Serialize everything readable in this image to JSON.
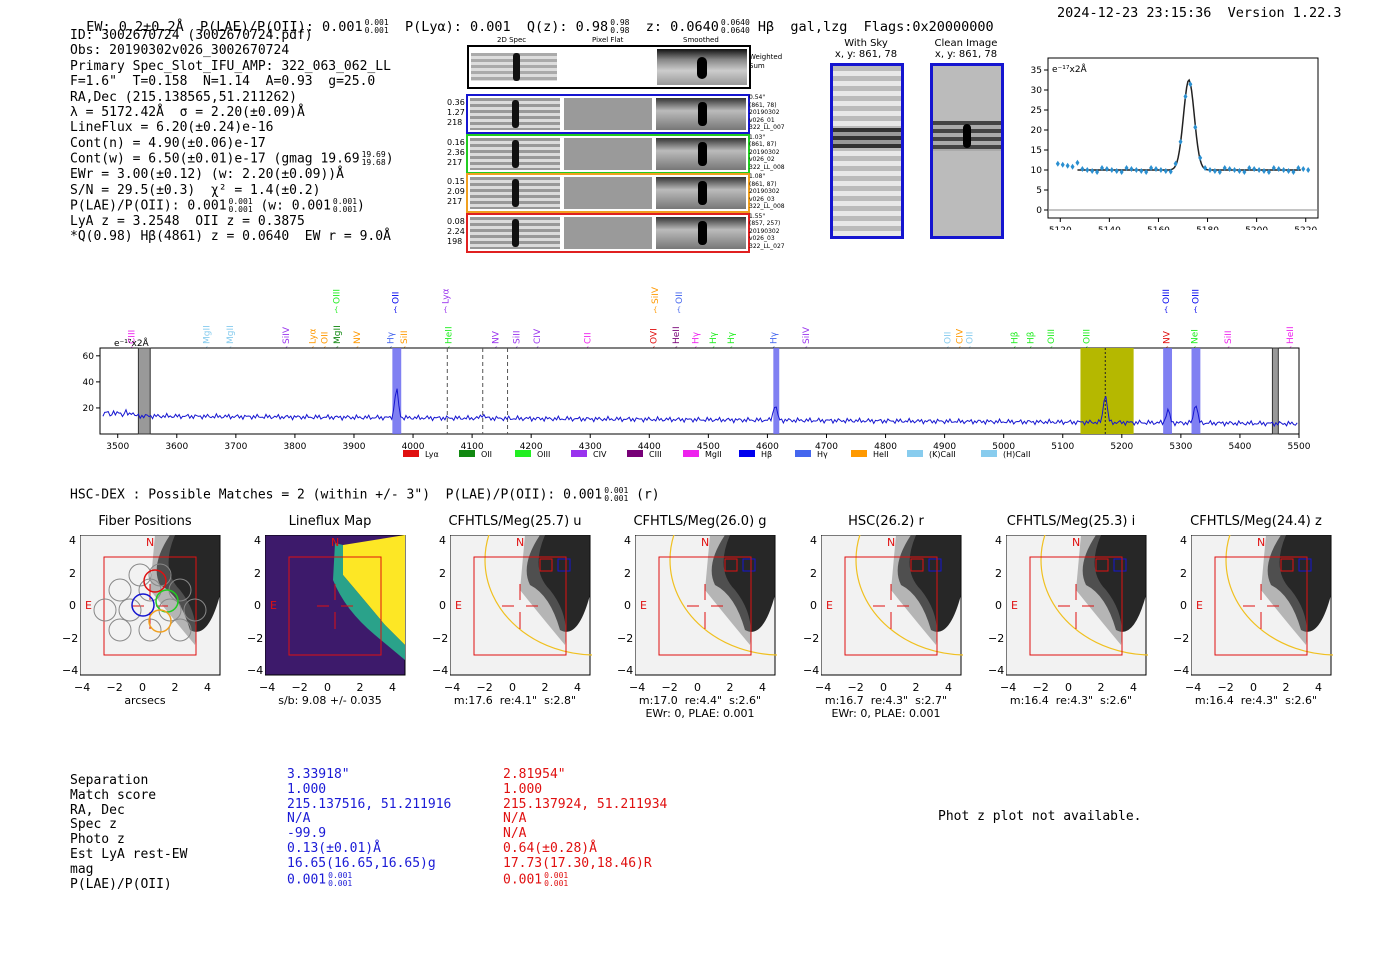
{
  "header": {
    "left": "EW: 0.2±0.2Å  P(LAE)/P(OII): 0.001",
    "plae_hi": "0.001",
    "plae_lo": "0.001",
    "plya": "P(Lyα): 0.001",
    "qz": "Q(z): 0.98",
    "qz_hi": "0.98",
    "qz_lo": "0.98",
    "z": "z: 0.0640",
    "z_hi": "0.0640",
    "z_lo": "0.0640",
    "hb": "Hβ  gal,lzg  Flags:0x20000000",
    "right": "2024-12-23 23:15:36  Version 1.22.3"
  },
  "info": {
    "line1": "ID: 3002670724 (3002670724.pdf)",
    "line2": "Obs: 20190302v026_3002670724",
    "line3": "Primary Spec_Slot_IFU_AMP: 322_063_062_LL",
    "line4": "F=1.6\"  T=0.158  N=1.14  A=0.93  g=25.0",
    "line5": "RA,Dec (215.138565,51.211262)",
    "line6": "λ = 5172.42Å  σ = 2.20(±0.09)Å",
    "line7": "LineFlux = 6.20(±0.24)e-16",
    "line8": "Cont(n) = 4.90(±0.06)e-17",
    "line9": "Cont(w) = 6.50(±0.01)e-17 (gmag 19.69",
    "line9_hi": "19.69",
    "line9_lo": "19.68",
    "line9_end": ")",
    "line10": "EWr = 3.00(±0.12) (w: 2.20(±0.09))Å",
    "line11": "S/N = 29.5(±0.3)  χ² = 1.4(±0.2)",
    "line12a": "P(LAE)/P(OII): 0.001",
    "line12_hi": "0.001",
    "line12_lo": "0.001",
    "line12b": " (w: 0.001",
    "line12b_hi": "0.001",
    "line12b_lo": "0.001",
    "line12b_end": ")",
    "line13": "LyA z = 3.2548  OII z = 0.3875",
    "line14": "*Q(0.98) Hβ(4861) z = 0.0640  EW r = 9.0Å"
  },
  "fibers": {
    "col_2d": "2D Spec",
    "col_flat": "Pixel Flat",
    "col_smooth": "Smoothed",
    "weighted": "Weighted\nSum",
    "rows": [
      {
        "left": "0.36\n1.27\n218",
        "right": "0.54\"\n(861, 78)\n20190302\nv026_01\n322_LL_007",
        "color": "#1515d0"
      },
      {
        "left": "0.16\n2.36\n217",
        "right": "1.03\"\n(861, 87)\n20190302\nv026_02\n322_LL_008",
        "color": "#22cc22"
      },
      {
        "left": "0.15\n2.09\n217",
        "right": "1.08\"\n(861, 87)\n20190302\nv026_03\n322_LL_008",
        "color": "#f0a020"
      },
      {
        "left": "0.08\n2.24\n198",
        "right": "1.55\"\n(857, 257)\n20190302\nv026_03\n322_LL_027",
        "color": "#e02020"
      }
    ]
  },
  "cutouts_top": {
    "with_sky": "With Sky",
    "with_sky_xy": "x, y: 861, 78",
    "clean": "Clean Image",
    "clean_xy": "x, y: 861, 78"
  },
  "zoom_plot": {
    "units": "e⁻¹⁷x2Å",
    "xticks": [
      "5120",
      "5140",
      "5160",
      "5180",
      "5200",
      "5220"
    ],
    "yticks": [
      "0",
      "5",
      "10",
      "15",
      "20",
      "25",
      "30",
      "35"
    ]
  },
  "full_spec": {
    "units": "e⁻¹⁷x2Å",
    "xticks": [
      "3500",
      "3600",
      "3700",
      "3800",
      "3900",
      "4000",
      "4100",
      "4200",
      "4300",
      "4400",
      "4500",
      "4600",
      "4700",
      "4800",
      "4900",
      "5000",
      "5100",
      "5200",
      "5300",
      "5400",
      "5500"
    ],
    "yticks": [
      "20",
      "40",
      "60"
    ],
    "legend": [
      {
        "name": "Lyα",
        "color": "#e01010"
      },
      {
        "name": "OII",
        "color": "#118811"
      },
      {
        "name": "OIII",
        "color": "#22ee22"
      },
      {
        "name": "CIV",
        "color": "#9933ee"
      },
      {
        "name": "CIII",
        "color": "#770077"
      },
      {
        "name": "MgII",
        "color": "#ee22ee"
      },
      {
        "name": "Hβ",
        "color": "#0000ee"
      },
      {
        "name": "Hγ",
        "color": "#4466ee"
      },
      {
        "name": "HeII",
        "color": "#ff9900"
      },
      {
        "name": "(K)CaII",
        "color": "#88ccee"
      },
      {
        "name": "(H)CaII",
        "color": "#88ccee"
      }
    ],
    "line_labels": [
      {
        "t": "CIII",
        "x": 3523,
        "c": "#ee22ee",
        "row": 2
      },
      {
        "t": "MgII",
        "x": 3650,
        "c": "#88ccee",
        "row": 2
      },
      {
        "t": "MgII",
        "x": 3690,
        "c": "#88ccee",
        "row": 2
      },
      {
        "t": "SiIV",
        "x": 3785,
        "c": "#9933ee",
        "row": 2
      },
      {
        "t": "Lyα",
        "x": 3830,
        "c": "#ff9900",
        "row": 2
      },
      {
        "t": "OII",
        "x": 3850,
        "c": "#ff9900",
        "row": 2
      },
      {
        "t": "OIII",
        "x": 3870,
        "c": "#22ee22",
        "row": 0
      },
      {
        "t": "MgII",
        "x": 3871,
        "c": "#118811",
        "row": 2
      },
      {
        "t": "NV",
        "x": 3905,
        "c": "#ff9900",
        "row": 2
      },
      {
        "t": "OII",
        "x": 3970,
        "c": "#0000ee",
        "row": 0
      },
      {
        "t": "Hγ",
        "x": 3962,
        "c": "#4466ee",
        "row": 2
      },
      {
        "t": "SiII",
        "x": 3985,
        "c": "#ff9900",
        "row": 2
      },
      {
        "t": "Lyα",
        "x": 4055,
        "c": "#9933ee",
        "row": 0
      },
      {
        "t": "HeII",
        "x": 4060,
        "c": "#22ee22",
        "row": 2
      },
      {
        "t": "NV",
        "x": 4140,
        "c": "#9933ee",
        "row": 2
      },
      {
        "t": "SiII",
        "x": 4175,
        "c": "#9933ee",
        "row": 2
      },
      {
        "t": "CIV",
        "x": 4210,
        "c": "#9933ee",
        "row": 2
      },
      {
        "t": "CII",
        "x": 4295,
        "c": "#ee22ee",
        "row": 2
      },
      {
        "t": "SiIV",
        "x": 4410,
        "c": "#ff9900",
        "row": 0
      },
      {
        "t": "OVI",
        "x": 4407,
        "c": "#e01010",
        "row": 2
      },
      {
        "t": "OII",
        "x": 4450,
        "c": "#4466ee",
        "row": 0
      },
      {
        "t": "HeII",
        "x": 4445,
        "c": "#770077",
        "row": 2
      },
      {
        "t": "Hγ",
        "x": 4478,
        "c": "#ee22ee",
        "row": 2
      },
      {
        "t": "Hγ",
        "x": 4508,
        "c": "#22ee22",
        "row": 2
      },
      {
        "t": "Hγ",
        "x": 4538,
        "c": "#22ee22",
        "row": 2
      },
      {
        "t": "Hγ",
        "x": 4610,
        "c": "#4466ee",
        "row": 2
      },
      {
        "t": "SiIV",
        "x": 4665,
        "c": "#9933ee",
        "row": 2
      },
      {
        "t": "OII",
        "x": 4905,
        "c": "#88ccee",
        "row": 2
      },
      {
        "t": "CIV",
        "x": 4925,
        "c": "#ff9900",
        "row": 2
      },
      {
        "t": "OII",
        "x": 4942,
        "c": "#88ccee",
        "row": 2
      },
      {
        "t": "Hβ",
        "x": 5018,
        "c": "#22ee22",
        "row": 2
      },
      {
        "t": "Hβ",
        "x": 5045,
        "c": "#22ee22",
        "row": 2
      },
      {
        "t": "OIII",
        "x": 5080,
        "c": "#22ee22",
        "row": 2
      },
      {
        "t": "OIII",
        "x": 5140,
        "c": "#22ee22",
        "row": 2
      },
      {
        "t": "OIII",
        "x": 5275,
        "c": "#0000ee",
        "row": 0
      },
      {
        "t": "NV",
        "x": 5276,
        "c": "#e01010",
        "row": 2
      },
      {
        "t": "OIII",
        "x": 5325,
        "c": "#0000ee",
        "row": 0
      },
      {
        "t": "NeI",
        "x": 5323,
        "c": "#22ee22",
        "row": 2
      },
      {
        "t": "SiII",
        "x": 5380,
        "c": "#ee22ee",
        "row": 2
      },
      {
        "t": "HeII",
        "x": 5485,
        "c": "#ee22ee",
        "row": 2
      }
    ]
  },
  "hsc": {
    "title": "HSC-DEX : Possible Matches = 2 (within +/- 3\")  P(LAE)/P(OII): 0.001",
    "title_hi": "0.001",
    "title_lo": "0.001",
    "title_end": " (r)"
  },
  "cutouts": [
    {
      "title": "Fiber Positions",
      "sub": "arcsecs",
      "sub2": ""
    },
    {
      "title": "Lineflux Map",
      "sub": "s/b: 9.08 +/- 0.035",
      "sub2": ""
    },
    {
      "title": "CFHTLS/Meg(25.7) u",
      "sub": "m:17.6  re:4.1\"  s:2.8\"",
      "sub2": ""
    },
    {
      "title": "CFHTLS/Meg(26.0) g",
      "sub": "m:17.0  re:4.4\"  s:2.6\"",
      "sub2": "EWr: 0, PLAE: 0.001"
    },
    {
      "title": "HSC(26.2) r",
      "sub": "m:16.7  re:4.3\"  s:2.7\"",
      "sub2": "EWr: 0, PLAE: 0.001"
    },
    {
      "title": "CFHTLS/Meg(25.3) i",
      "sub": "m:16.4  re:4.3\"  s:2.6\"",
      "sub2": ""
    },
    {
      "title": "CFHTLS/Meg(24.4) z",
      "sub": "m:16.4  re:4.3\"  s:2.6\"",
      "sub2": ""
    }
  ],
  "cutout_axis": {
    "xticks": [
      "−4",
      "−2",
      "0",
      "2",
      "4"
    ],
    "yticks": [
      "4",
      "2",
      "0",
      "−2",
      "−4"
    ],
    "N": "N",
    "E": "E"
  },
  "matches": {
    "labels": [
      "Separation",
      "Match score",
      "RA, Dec",
      "Spec z",
      "Photo z",
      "Est LyA rest-EW",
      "mag",
      "P(LAE)/P(OII)"
    ],
    "blue": [
      "3.33918\"",
      "1.000",
      "215.137516, 51.211916",
      "N/A",
      "-99.9",
      "0.13(±0.01)Å",
      "16.65(16.65,16.65)g",
      "0.001"
    ],
    "blue_plae_hi": "0.001",
    "blue_plae_lo": "0.001",
    "red": [
      "2.81954\"",
      "1.000",
      "215.137924, 51.211934",
      "N/A",
      "N/A",
      "0.64(±0.28)Å",
      "17.73(17.30,18.46)R",
      "0.001"
    ],
    "red_plae_hi": "0.001",
    "red_plae_lo": "0.001"
  },
  "photz": "Phot z plot not available."
}
